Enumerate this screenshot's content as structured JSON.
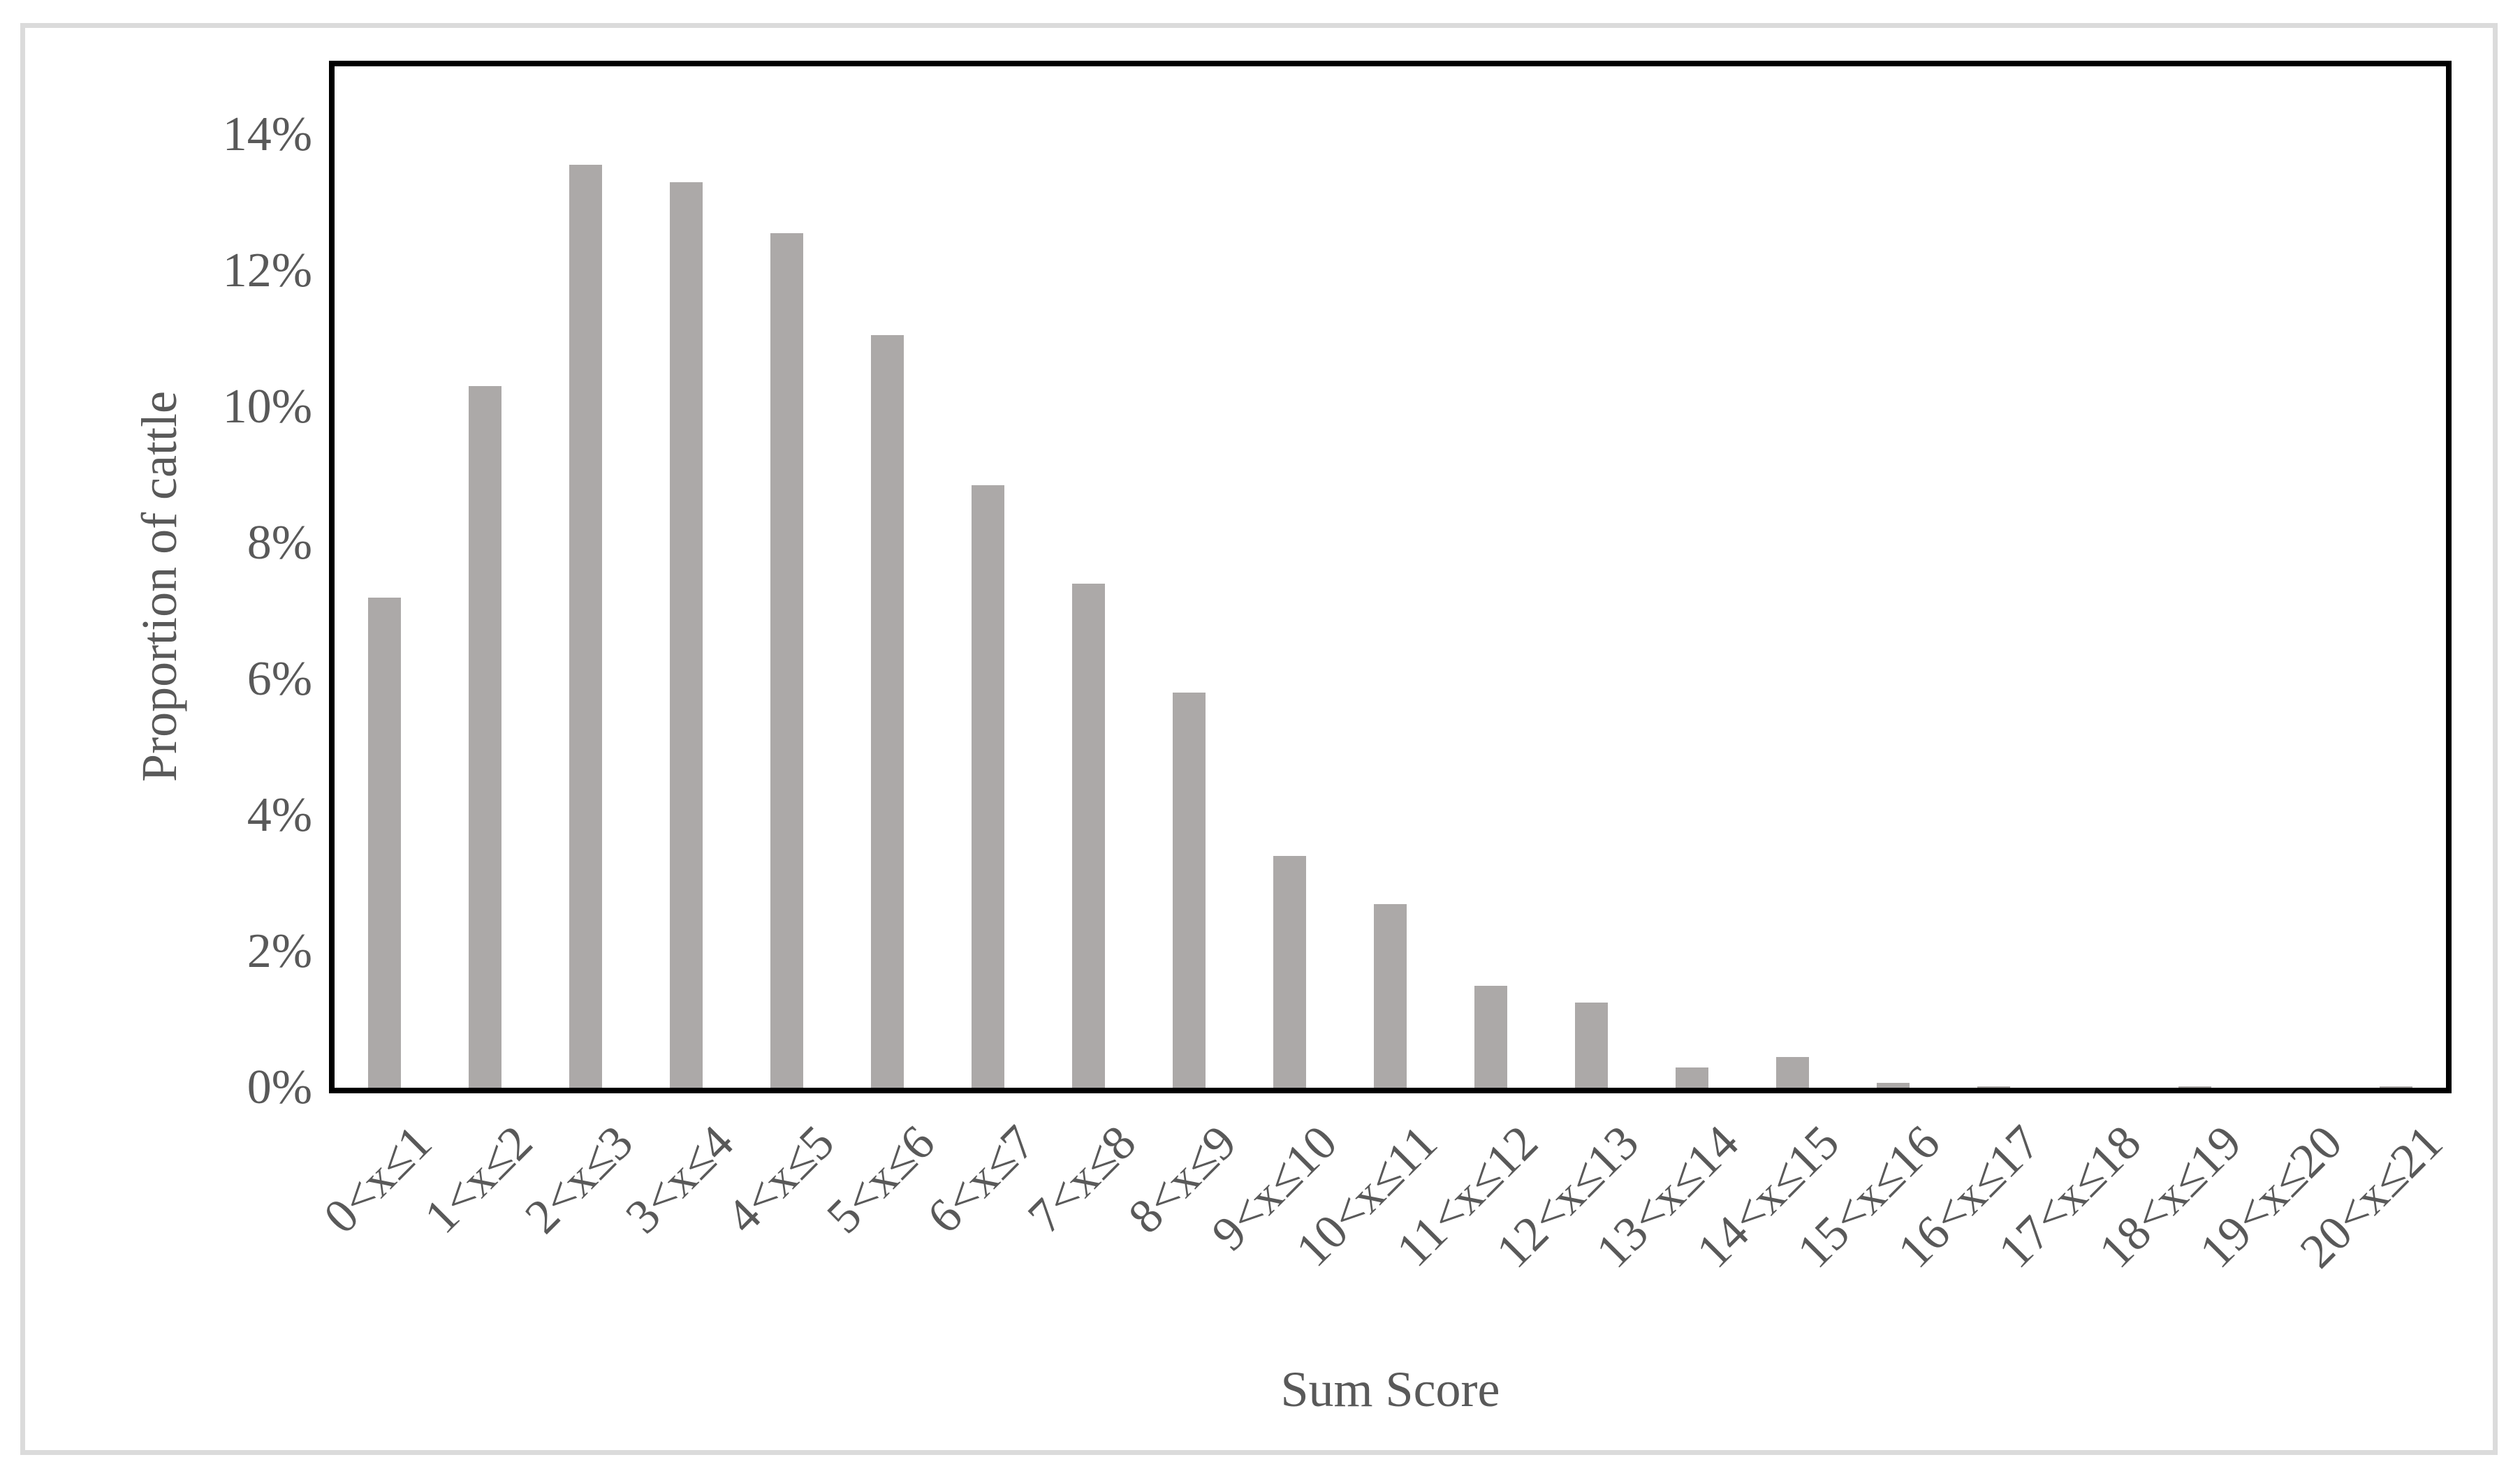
{
  "figure": {
    "kind": "column-chart-figure",
    "background_color": "#FFFFFF",
    "border_color": "#DBDBDB"
  },
  "chart_data": {
    "type": "bar",
    "title": "",
    "xlabel": "Sum Score",
    "ylabel": "Proportion of cattle",
    "categories": [
      "0<x≤1",
      "1<x≤2",
      "2<x≤3",
      "3<x≤4",
      "4<x≤5",
      "5<x≤6",
      "6<x≤7",
      "7<x≤8",
      "8<x≤9",
      "9<x≤10",
      "10<x≤11",
      "11<x≤12",
      "12<x≤13",
      "13<x≤14",
      "14<x≤15",
      "15<x≤16",
      "16<x≤17",
      "17<x≤18",
      "18<x≤19",
      "19<x≤20",
      "20<x≤21"
    ],
    "values": [
      7.2,
      10.3,
      13.55,
      13.3,
      12.55,
      11.05,
      8.85,
      7.4,
      5.8,
      3.4,
      2.7,
      1.5,
      1.25,
      0.3,
      0.45,
      0.07,
      0.02,
      0,
      0.02,
      0,
      0.02
    ],
    "value_unit": "percent",
    "y_ticks": [
      "0%",
      "2%",
      "4%",
      "6%",
      "8%",
      "10%",
      "12%",
      "14%"
    ],
    "y_tick_values": [
      0,
      2,
      4,
      6,
      8,
      10,
      12,
      14
    ],
    "ylim": [
      0,
      15
    ],
    "x_tick_rotation_deg": 45,
    "grid": "off",
    "legend": "none",
    "bar_color": "#ACA9A8",
    "plot_border_color": "#000000",
    "text_color": "#595959"
  }
}
